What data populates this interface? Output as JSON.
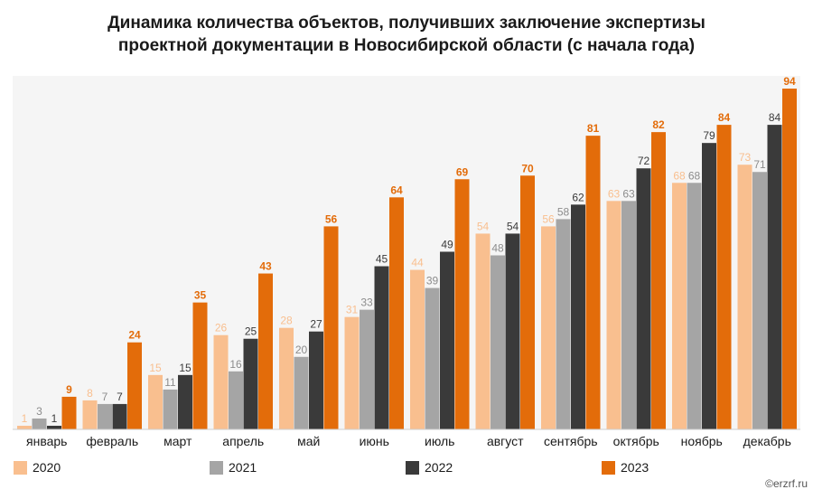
{
  "chart_data": {
    "type": "bar",
    "title_lines": [
      "Динамика количества объектов, получивших заключение экспертизы",
      "проектной документации в Новосибирской области (с начала года)"
    ],
    "categories": [
      "январь",
      "февраль",
      "март",
      "апрель",
      "май",
      "июнь",
      "июль",
      "август",
      "сентябрь",
      "октябрь",
      "ноябрь",
      "декабрь"
    ],
    "series": [
      {
        "name": "2020",
        "color": "#f9bf8f",
        "label_color": "#f9bf8f",
        "values": [
          1,
          8,
          15,
          26,
          28,
          31,
          44,
          54,
          56,
          63,
          68,
          73
        ]
      },
      {
        "name": "2021",
        "color": "#a5a5a5",
        "label_color": "#8c8c8c",
        "values": [
          3,
          7,
          11,
          16,
          20,
          33,
          39,
          48,
          58,
          63,
          68,
          71
        ]
      },
      {
        "name": "2022",
        "color": "#3a3a3a",
        "label_color": "#3a3a3a",
        "values": [
          1,
          7,
          15,
          25,
          27,
          45,
          49,
          54,
          62,
          72,
          79,
          84
        ]
      },
      {
        "name": "2023",
        "color": "#e36c0a",
        "label_color": "#e36c0a",
        "values": [
          9,
          24,
          35,
          43,
          56,
          64,
          69,
          70,
          81,
          82,
          84,
          94
        ]
      }
    ],
    "xlabel": "",
    "ylabel": "",
    "ylim": [
      0,
      94
    ],
    "grid": false,
    "legend_position": "bottom",
    "background": "#f5f5f5"
  },
  "watermark": "©erzrf.ru"
}
